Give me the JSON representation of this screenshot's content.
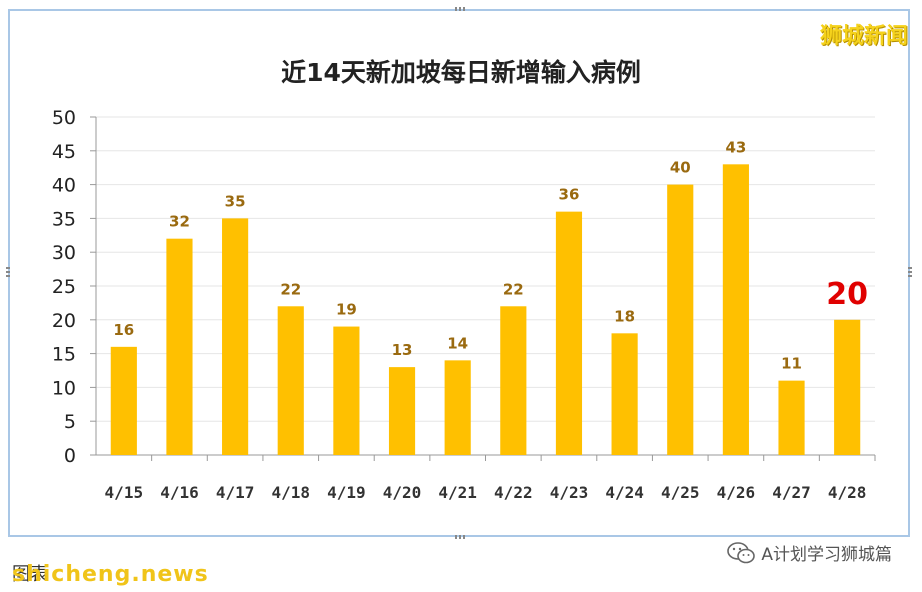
{
  "chart_data": {
    "type": "bar",
    "title": "近14天新加坡每日新增输入病例",
    "categories": [
      "4/15",
      "4/16",
      "4/17",
      "4/18",
      "4/19",
      "4/20",
      "4/21",
      "4/22",
      "4/23",
      "4/24",
      "4/25",
      "4/26",
      "4/27",
      "4/28"
    ],
    "values": [
      16,
      32,
      35,
      22,
      19,
      13,
      14,
      22,
      36,
      18,
      40,
      43,
      11,
      20
    ],
    "highlight_index": 13,
    "ylim": [
      0,
      50
    ],
    "yticks": [
      0,
      5,
      10,
      15,
      20,
      25,
      30,
      35,
      40,
      45,
      50
    ],
    "grid": true,
    "xlabel": "",
    "ylabel": "",
    "bar_color": "#ffc000",
    "label_color": "#9a6a10",
    "highlight_label_color": "#e00000"
  },
  "watermark": "狮城新闻",
  "footer": {
    "note": "图表",
    "url": "shicheng.news",
    "brand": "A计划学习狮城篇"
  }
}
